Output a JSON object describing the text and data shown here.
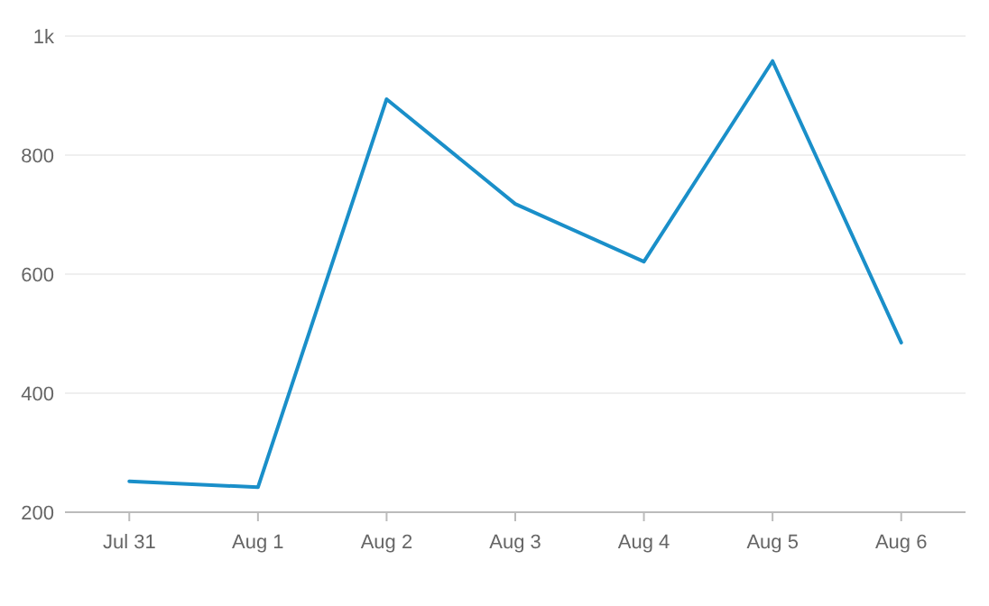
{
  "chart_data": {
    "type": "line",
    "categories": [
      "Jul 31",
      "Aug 1",
      "Aug 2",
      "Aug 3",
      "Aug 4",
      "Aug 5",
      "Aug 6"
    ],
    "series": [
      {
        "color": "#1a8fc9",
        "values": [
          252,
          242,
          894,
          718,
          621,
          958,
          485
        ]
      }
    ],
    "ylim": [
      200,
      1000
    ],
    "yticks": [
      200,
      400,
      600,
      800,
      {
        "value": 1000,
        "label": "1k"
      }
    ],
    "grid": "y",
    "marker": "none",
    "line_style": "solid"
  }
}
